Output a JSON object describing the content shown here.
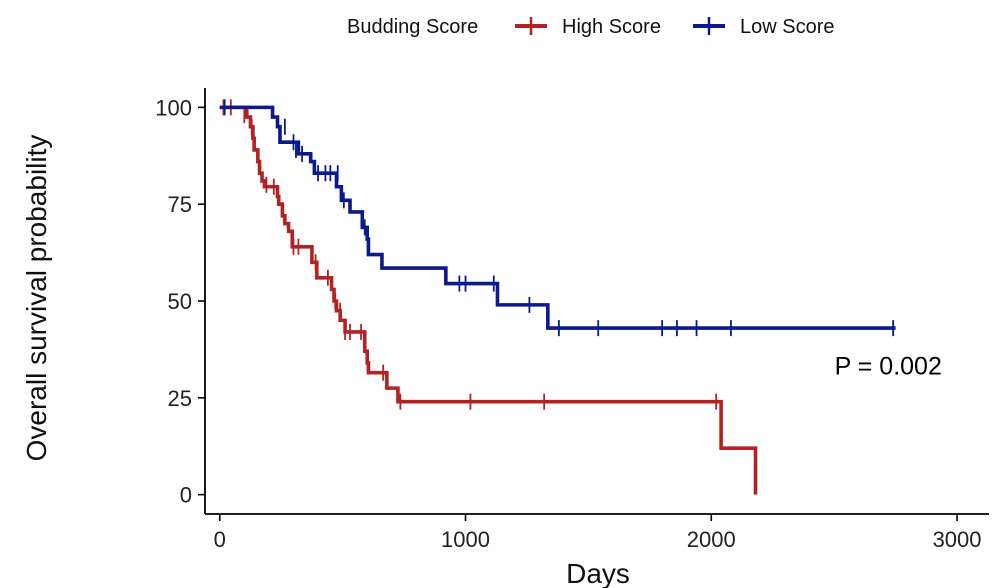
{
  "chart_data": {
    "type": "line",
    "subtype": "kaplan-meier",
    "title": "",
    "xlabel": "Days",
    "ylabel": "Overall survival probability",
    "xlim": [
      -60,
      3130
    ],
    "ylim": [
      -5,
      105
    ],
    "xticks": [
      0,
      1000,
      2000,
      3000
    ],
    "yticks": [
      0,
      25,
      50,
      75,
      100
    ],
    "grid": false,
    "legend": {
      "title": "Budding Score",
      "position": "top"
    },
    "annotation": {
      "text": "P = 0.002",
      "x": 2720,
      "y": 31
    },
    "series": [
      {
        "name": "High Score",
        "color": "#b22222",
        "steps": [
          [
            0,
            100
          ],
          [
            70,
            100
          ],
          [
            110,
            97.5
          ],
          [
            125,
            95
          ],
          [
            135,
            92
          ],
          [
            140,
            89
          ],
          [
            155,
            86
          ],
          [
            162,
            83
          ],
          [
            172,
            81
          ],
          [
            182,
            79.5
          ],
          [
            235,
            77
          ],
          [
            240,
            75
          ],
          [
            255,
            72
          ],
          [
            265,
            70
          ],
          [
            280,
            68
          ],
          [
            295,
            64
          ],
          [
            375,
            60
          ],
          [
            395,
            56
          ],
          [
            455,
            53
          ],
          [
            465,
            50
          ],
          [
            475,
            47.5
          ],
          [
            490,
            45
          ],
          [
            510,
            42
          ],
          [
            590,
            37
          ],
          [
            600,
            34
          ],
          [
            605,
            31.5
          ],
          [
            680,
            27.5
          ],
          [
            725,
            24
          ],
          [
            2040,
            12
          ],
          [
            2180,
            0
          ]
        ],
        "end": 2180,
        "censors": [
          [
            15,
            100
          ],
          [
            45,
            100
          ],
          [
            100,
            98
          ],
          [
            130,
            95
          ],
          [
            190,
            80
          ],
          [
            220,
            79.5
          ],
          [
            300,
            64
          ],
          [
            320,
            64
          ],
          [
            390,
            60
          ],
          [
            440,
            56
          ],
          [
            470,
            50
          ],
          [
            490,
            47.5
          ],
          [
            510,
            42
          ],
          [
            530,
            42
          ],
          [
            575,
            42
          ],
          [
            665,
            31.5
          ],
          [
            735,
            24
          ],
          [
            1020,
            24
          ],
          [
            1320,
            24
          ],
          [
            2020,
            24
          ]
        ]
      },
      {
        "name": "Low Score",
        "color": "#0a1a8c",
        "steps": [
          [
            0,
            100
          ],
          [
            170,
            100
          ],
          [
            215,
            97.5
          ],
          [
            235,
            95
          ],
          [
            245,
            91
          ],
          [
            320,
            88
          ],
          [
            370,
            86
          ],
          [
            385,
            83
          ],
          [
            475,
            79.5
          ],
          [
            495,
            76
          ],
          [
            530,
            73
          ],
          [
            580,
            69
          ],
          [
            600,
            66
          ],
          [
            605,
            62
          ],
          [
            660,
            58.5
          ],
          [
            920,
            54.5
          ],
          [
            1130,
            49
          ],
          [
            1335,
            43
          ]
        ],
        "end": 2750,
        "censors": [
          [
            20,
            100
          ],
          [
            265,
            95
          ],
          [
            300,
            91
          ],
          [
            310,
            89
          ],
          [
            335,
            88
          ],
          [
            400,
            83
          ],
          [
            430,
            83
          ],
          [
            450,
            83
          ],
          [
            480,
            83
          ],
          [
            505,
            76
          ],
          [
            590,
            69
          ],
          [
            975,
            54.5
          ],
          [
            1000,
            54.5
          ],
          [
            1115,
            54.5
          ],
          [
            1260,
            49
          ],
          [
            1380,
            43
          ],
          [
            1540,
            43
          ],
          [
            1800,
            43
          ],
          [
            1860,
            43
          ],
          [
            1940,
            43
          ],
          [
            2080,
            43
          ],
          [
            2740,
            43
          ]
        ]
      }
    ]
  }
}
